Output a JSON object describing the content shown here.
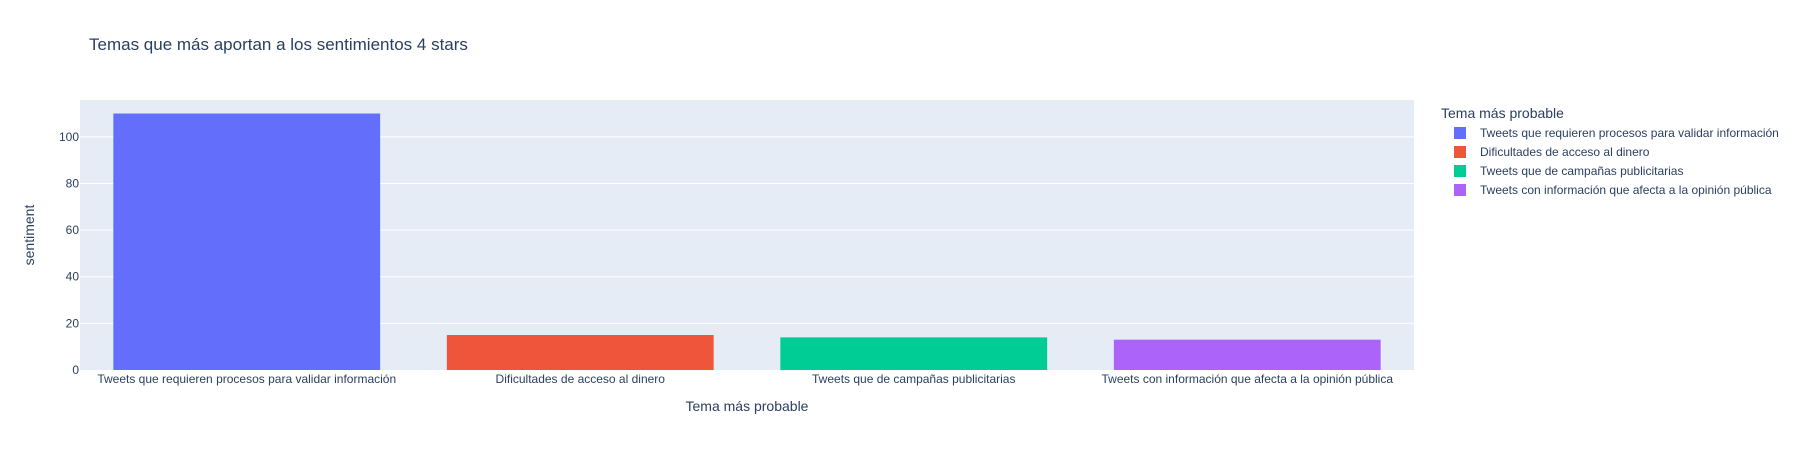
{
  "chart_data": {
    "type": "bar",
    "title": "Temas que más aportan a los sentimientos 4 stars",
    "xlabel": "Tema más probable",
    "ylabel": "sentiment",
    "categories": [
      "Tweets que requieren procesos para validar información",
      "Dificultades de acceso al dinero",
      "Tweets que de campañas publicitarias",
      "Tweets con información que afecta a la opinión pública"
    ],
    "values": [
      110,
      15,
      14,
      13
    ],
    "colors": [
      "#636efa",
      "#ef553b",
      "#00cc96",
      "#ab63fa"
    ],
    "ylim": [
      0,
      115.8
    ],
    "yticks": [
      0,
      20,
      40,
      60,
      80,
      100
    ],
    "grid": true,
    "plot_background": "#e5ecf6",
    "legend": {
      "title": "Tema más probable",
      "placement": "right",
      "entries": [
        "Tweets que requieren procesos para validar información",
        "Dificultades de acceso al dinero",
        "Tweets que de campañas publicitarias",
        "Tweets con información que afecta a la opinión pública"
      ]
    }
  }
}
